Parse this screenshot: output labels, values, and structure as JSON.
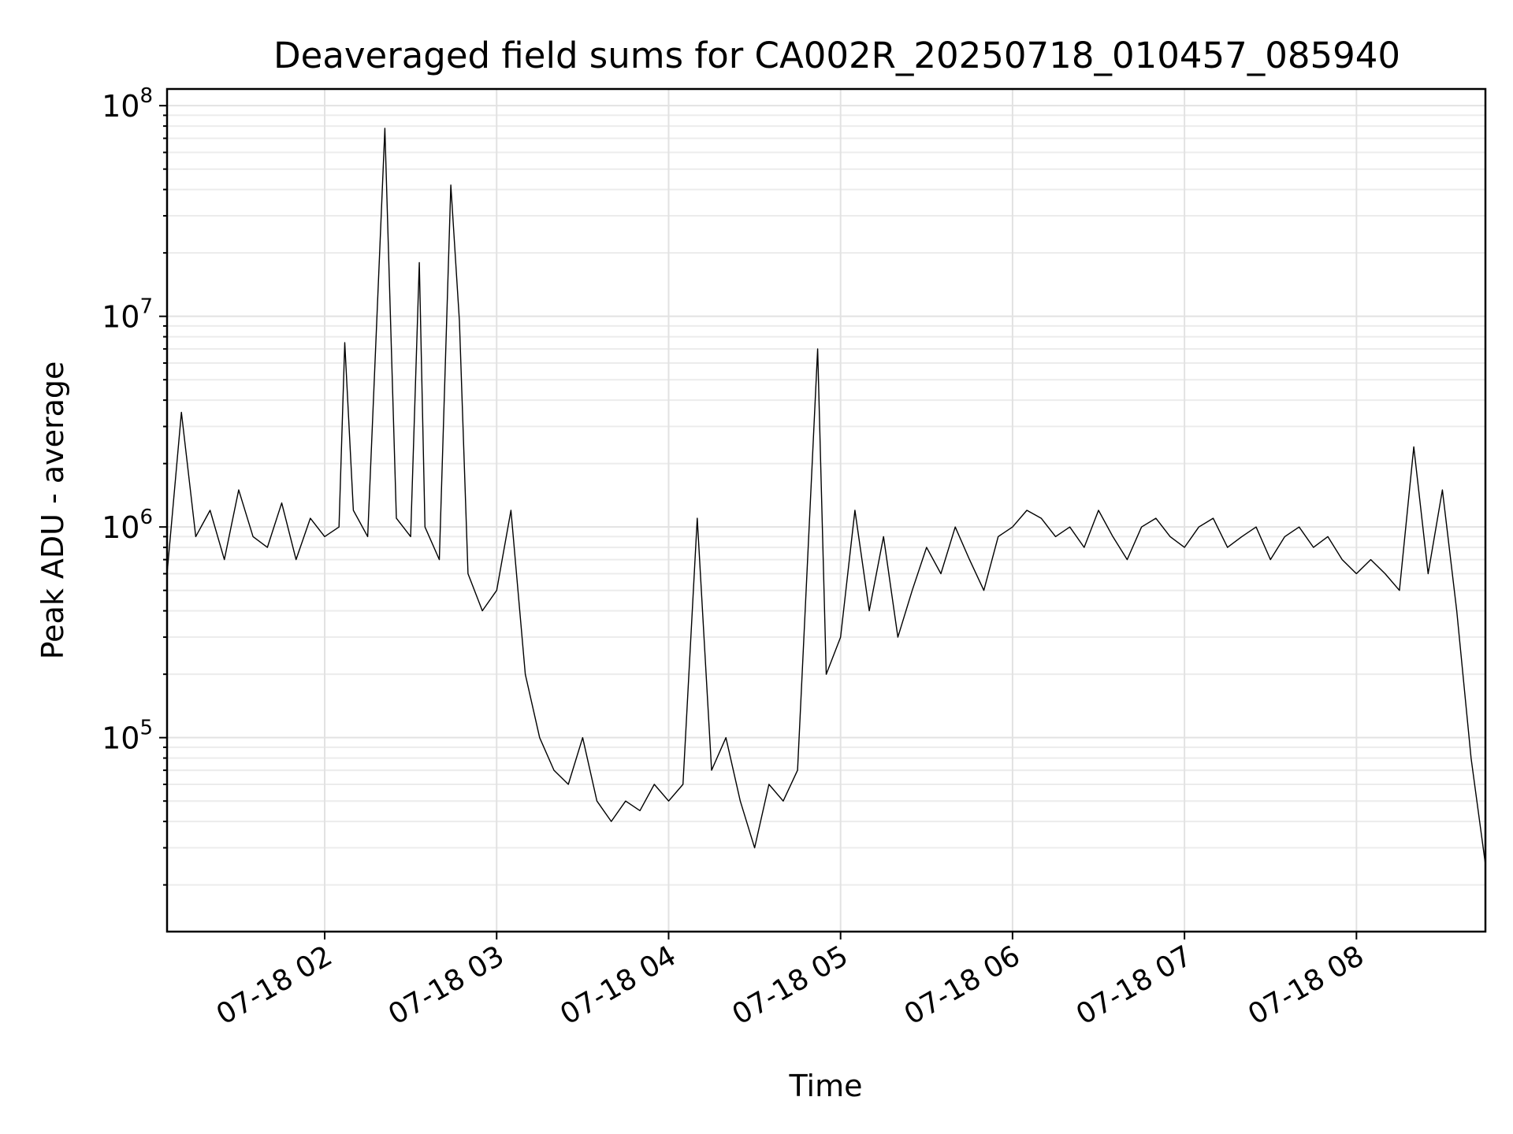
{
  "chart_data": {
    "type": "line",
    "title": "Deaveraged field sums for CA002R_20250718_010457_085940",
    "xlabel": "Time",
    "ylabel": "Peak ADU - average",
    "y_scale": "log",
    "ylim": [
      12000,
      120000000
    ],
    "xlim": [
      "2025-07-18T01:05",
      "2025-07-18T08:45"
    ],
    "grid": true,
    "line_color": "#000000",
    "x_ticks": [
      "2025-07-18T02:00",
      "2025-07-18T03:00",
      "2025-07-18T04:00",
      "2025-07-18T05:00",
      "2025-07-18T06:00",
      "2025-07-18T07:00",
      "2025-07-18T08:00"
    ],
    "x_tick_labels": [
      "07-18 02",
      "07-18 03",
      "07-18 04",
      "07-18 05",
      "07-18 06",
      "07-18 07",
      "07-18 08"
    ],
    "y_tick_labels": [
      {
        "value": 100000,
        "base": "10",
        "exp": "5"
      },
      {
        "value": 1000000,
        "base": "10",
        "exp": "6"
      },
      {
        "value": 10000000,
        "base": "10",
        "exp": "7"
      },
      {
        "value": 100000000,
        "base": "10",
        "exp": "8"
      }
    ],
    "series": [
      {
        "x": [
          "2025-07-18T01:05",
          "2025-07-18T01:10",
          "2025-07-18T01:15",
          "2025-07-18T01:20",
          "2025-07-18T01:25",
          "2025-07-18T01:30",
          "2025-07-18T01:35",
          "2025-07-18T01:40",
          "2025-07-18T01:45",
          "2025-07-18T01:50",
          "2025-07-18T01:55",
          "2025-07-18T02:00",
          "2025-07-18T02:05",
          "2025-07-18T02:07",
          "2025-07-18T02:10",
          "2025-07-18T02:15",
          "2025-07-18T02:21",
          "2025-07-18T02:25",
          "2025-07-18T02:30",
          "2025-07-18T02:33",
          "2025-07-18T02:35",
          "2025-07-18T02:40",
          "2025-07-18T02:44",
          "2025-07-18T02:47",
          "2025-07-18T02:50",
          "2025-07-18T02:55",
          "2025-07-18T03:00",
          "2025-07-18T03:05",
          "2025-07-18T03:10",
          "2025-07-18T03:15",
          "2025-07-18T03:20",
          "2025-07-18T03:25",
          "2025-07-18T03:30",
          "2025-07-18T03:35",
          "2025-07-18T03:40",
          "2025-07-18T03:45",
          "2025-07-18T03:50",
          "2025-07-18T03:55",
          "2025-07-18T04:00",
          "2025-07-18T04:05",
          "2025-07-18T04:10",
          "2025-07-18T04:15",
          "2025-07-18T04:20",
          "2025-07-18T04:25",
          "2025-07-18T04:30",
          "2025-07-18T04:35",
          "2025-07-18T04:40",
          "2025-07-18T04:45",
          "2025-07-18T04:52",
          "2025-07-18T04:55",
          "2025-07-18T05:00",
          "2025-07-18T05:05",
          "2025-07-18T05:10",
          "2025-07-18T05:15",
          "2025-07-18T05:20",
          "2025-07-18T05:25",
          "2025-07-18T05:30",
          "2025-07-18T05:35",
          "2025-07-18T05:40",
          "2025-07-18T05:45",
          "2025-07-18T05:50",
          "2025-07-18T05:55",
          "2025-07-18T06:00",
          "2025-07-18T06:05",
          "2025-07-18T06:10",
          "2025-07-18T06:15",
          "2025-07-18T06:20",
          "2025-07-18T06:25",
          "2025-07-18T06:30",
          "2025-07-18T06:35",
          "2025-07-18T06:40",
          "2025-07-18T06:45",
          "2025-07-18T06:50",
          "2025-07-18T06:55",
          "2025-07-18T07:00",
          "2025-07-18T07:05",
          "2025-07-18T07:10",
          "2025-07-18T07:15",
          "2025-07-18T07:20",
          "2025-07-18T07:25",
          "2025-07-18T07:30",
          "2025-07-18T07:35",
          "2025-07-18T07:40",
          "2025-07-18T07:45",
          "2025-07-18T07:50",
          "2025-07-18T07:55",
          "2025-07-18T08:00",
          "2025-07-18T08:05",
          "2025-07-18T08:10",
          "2025-07-18T08:15",
          "2025-07-18T08:20",
          "2025-07-18T08:25",
          "2025-07-18T08:30",
          "2025-07-18T08:35",
          "2025-07-18T08:40",
          "2025-07-18T08:45"
        ],
        "values": [
          600000,
          3500000,
          900000,
          1200000,
          700000,
          1500000,
          900000,
          800000,
          1300000,
          700000,
          1100000,
          900000,
          1000000,
          7500000,
          1200000,
          900000,
          78000000,
          1100000,
          900000,
          18000000,
          1000000,
          700000,
          42000000,
          9500000,
          600000,
          400000,
          500000,
          1200000,
          200000,
          100000,
          70000,
          60000,
          100000,
          50000,
          40000,
          50000,
          45000,
          60000,
          50000,
          60000,
          1100000,
          70000,
          100000,
          50000,
          30000,
          60000,
          50000,
          70000,
          7000000,
          200000,
          300000,
          1200000,
          400000,
          900000,
          300000,
          500000,
          800000,
          600000,
          1000000,
          700000,
          500000,
          900000,
          1000000,
          1200000,
          1100000,
          900000,
          1000000,
          800000,
          1200000,
          900000,
          700000,
          1000000,
          1100000,
          900000,
          800000,
          1000000,
          1100000,
          800000,
          900000,
          1000000,
          700000,
          900000,
          1000000,
          800000,
          900000,
          700000,
          600000,
          700000,
          600000,
          500000,
          2400000,
          600000,
          1500000,
          400000,
          80000,
          25000
        ]
      }
    ]
  }
}
